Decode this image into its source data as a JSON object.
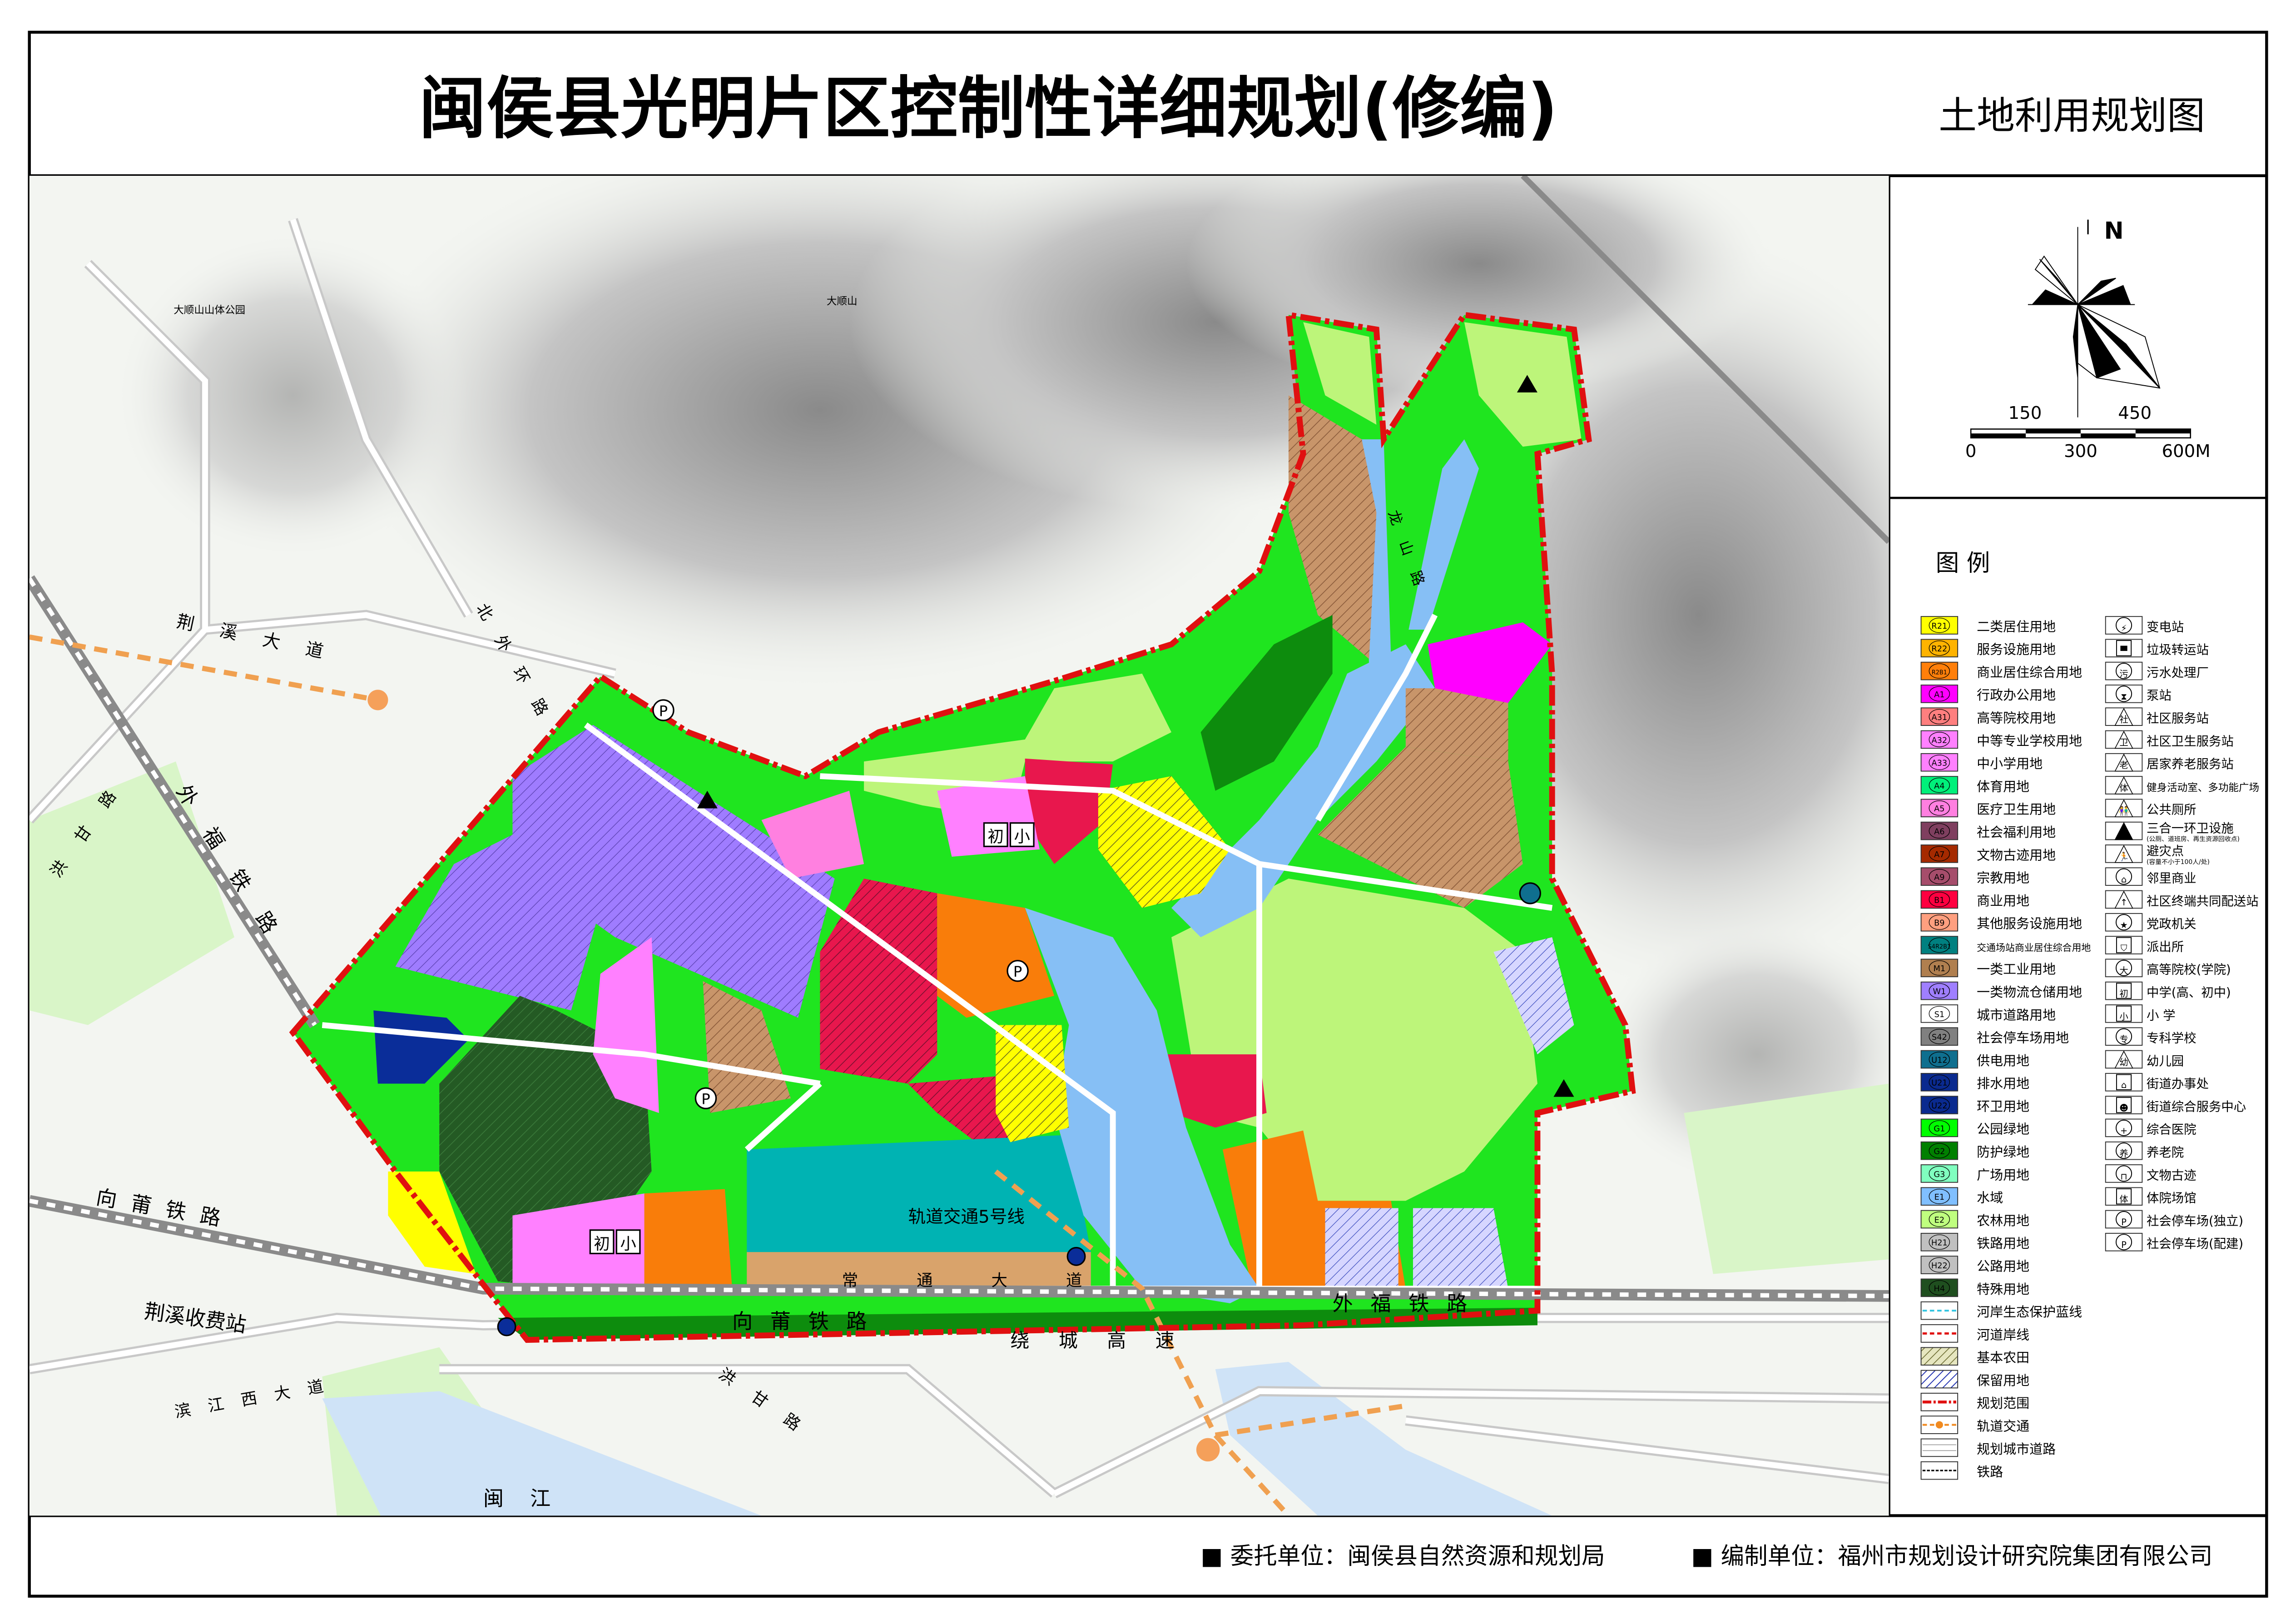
{
  "title": "闽侯县光明片区控制性详细规划(修编)",
  "subtitle": "土地利用规划图",
  "compass": {
    "north": "N"
  },
  "scale_bar": {
    "labels_top": [
      "150",
      "450"
    ],
    "labels_bottom": [
      "0",
      "300",
      "600M"
    ]
  },
  "legend": {
    "title": "图 例",
    "land_use": [
      {
        "code": "R21",
        "label": "二类居住用地",
        "color": "#ffff00"
      },
      {
        "code": "R22",
        "label": "服务设施用地",
        "color": "#ffb300"
      },
      {
        "code": "R2B1",
        "label": "商业居住综合用地",
        "color": "#ff7f0a"
      },
      {
        "code": "A1",
        "label": "行政办公用地",
        "color": "#ff00ff"
      },
      {
        "code": "A31",
        "label": "高等院校用地",
        "color": "#ff7f7f"
      },
      {
        "code": "A32",
        "label": "中等专业学校用地",
        "color": "#ff80ff"
      },
      {
        "code": "A33",
        "label": "中小学用地",
        "color": "#ff80ff"
      },
      {
        "code": "A4",
        "label": "体育用地",
        "color": "#00f07a"
      },
      {
        "code": "A5",
        "label": "医疗卫生用地",
        "color": "#ff7fe0"
      },
      {
        "code": "A6",
        "label": "社会福利用地",
        "color": "#7f3f5f"
      },
      {
        "code": "A7",
        "label": "文物古迹用地",
        "color": "#a52a00"
      },
      {
        "code": "A9",
        "label": "宗教用地",
        "color": "#a64d6b"
      },
      {
        "code": "B1",
        "label": "商业用地",
        "color": "#ff0040"
      },
      {
        "code": "B9",
        "label": "其他服务设施用地",
        "color": "#ff9f7f"
      },
      {
        "code": "S4R2B1",
        "label": "交通场站商业居住综合用地",
        "color": "#008080"
      },
      {
        "code": "M1",
        "label": "一类工业用地",
        "color": "#b07f4f"
      },
      {
        "code": "W1",
        "label": "一类物流仓储用地",
        "color": "#9f7fff"
      },
      {
        "code": "S1",
        "label": "城市道路用地",
        "color": "#ffffff"
      },
      {
        "code": "S42",
        "label": "社会停车场用地",
        "color": "#808080"
      },
      {
        "code": "U12",
        "label": "供电用地",
        "color": "#0f6f8f"
      },
      {
        "code": "U21",
        "label": "排水用地",
        "color": "#0a2a8f"
      },
      {
        "code": "U22",
        "label": "环卫用地",
        "color": "#0a2a8f"
      },
      {
        "code": "G1",
        "label": "公园绿地",
        "color": "#00ff00"
      },
      {
        "code": "G2",
        "label": "防护绿地",
        "color": "#008000"
      },
      {
        "code": "G3",
        "label": "广场用地",
        "color": "#80ffbf"
      },
      {
        "code": "E1",
        "label": "水域",
        "color": "#80bfff"
      },
      {
        "code": "E2",
        "label": "农林用地",
        "color": "#bfff7f"
      },
      {
        "code": "H21",
        "label": "铁路用地",
        "color": "#c0c0c0"
      },
      {
        "code": "H22",
        "label": "公路用地",
        "color": "#c0c0c0"
      },
      {
        "code": "H4",
        "label": "特殊用地",
        "color": "#1f4f1f"
      }
    ],
    "line_items": [
      {
        "type": "blue-dash",
        "label": "河岸生态保护蓝线",
        "color": "#2ec4e0"
      },
      {
        "type": "red-dash",
        "label": "河道岸线",
        "color": "#e01010"
      },
      {
        "type": "farmland-hatch",
        "label": "基本农田",
        "color": "#8a8a3a"
      },
      {
        "type": "reserve-hatch",
        "label": "保留用地",
        "color": "#2030b0"
      },
      {
        "type": "boundary",
        "label": "规划范围",
        "color": "#e01010"
      },
      {
        "type": "rail-transit",
        "label": "轨道交通",
        "color": "#f08a20"
      },
      {
        "type": "road",
        "label": "规划城市道路",
        "color": "#888888"
      },
      {
        "type": "railway",
        "label": "铁路",
        "color": "#000000"
      }
    ],
    "facilities": [
      {
        "icon": "lightning-circle",
        "glyph": "⚡",
        "label": "变电站"
      },
      {
        "icon": "trash-bin",
        "glyph": "▀",
        "label": "垃圾转运站"
      },
      {
        "icon": "sewage-circle",
        "glyph": "污",
        "label": "污水处理厂"
      },
      {
        "icon": "hourglass-circle",
        "glyph": "⧗",
        "label": "泵站"
      },
      {
        "icon": "triangle-she",
        "glyph": "社",
        "label": "社区服务站"
      },
      {
        "icon": "triangle-wei",
        "glyph": "卫",
        "label": "社区卫生服务站"
      },
      {
        "icon": "triangle-lao",
        "glyph": "老",
        "label": "居家养老服务站"
      },
      {
        "icon": "triangle-ti",
        "glyph": "体",
        "label": "健身活动室、多功能广场"
      },
      {
        "icon": "triangle-toilet",
        "glyph": "👫",
        "label": "公共厕所"
      },
      {
        "icon": "triangle-solid",
        "glyph": "▲",
        "label": "三合一环卫设施",
        "sub": "(公厕、道班房、再生资源回收点)"
      },
      {
        "icon": "triangle-runner",
        "glyph": "🏃",
        "label": "避灾点",
        "sub": "(容量不小于100人/处)"
      },
      {
        "icon": "house-circle",
        "glyph": "⌂",
        "label": "邻里商业"
      },
      {
        "icon": "triangle-arrow",
        "glyph": "↑",
        "label": "社区终端共同配送站"
      },
      {
        "icon": "star-circle",
        "glyph": "★",
        "label": "党政机关"
      },
      {
        "icon": "shield-star",
        "glyph": "⛉",
        "label": "派出所"
      },
      {
        "icon": "circle-da",
        "glyph": "大",
        "label": "高等院校(学院)"
      },
      {
        "icon": "square-chu",
        "glyph": "初",
        "label": "中学(高、初中)"
      },
      {
        "icon": "square-xiao",
        "glyph": "小",
        "label": "小 学"
      },
      {
        "icon": "circle-zhuan",
        "glyph": "专",
        "label": "专科学校"
      },
      {
        "icon": "triangle-you",
        "glyph": "幼",
        "label": "幼儿园"
      },
      {
        "icon": "street-office",
        "glyph": "⌂",
        "label": "街道办事处"
      },
      {
        "icon": "street-service",
        "glyph": "☻",
        "label": "街道综合服务中心"
      },
      {
        "icon": "plus-circle",
        "glyph": "+",
        "label": "综合医院"
      },
      {
        "icon": "circle-yang",
        "glyph": "养",
        "label": "养老院"
      },
      {
        "icon": "heritage-circle",
        "glyph": "⊓",
        "label": "文物古迹"
      },
      {
        "icon": "square-ti",
        "glyph": "体",
        "label": "体院场馆"
      },
      {
        "icon": "parking-circle",
        "glyph": "P",
        "label": "社会停车场(独立)"
      },
      {
        "icon": "parking-triangle",
        "glyph": "P",
        "label": "社会停车场(配建)"
      }
    ]
  },
  "map_labels": {
    "jingxi_avenue": "荆溪大道",
    "north_ring": "北外环路",
    "waifu_rail_west": "外福铁路",
    "honggan_west": "洪甘路",
    "xiangpu_rail_west": "向莆铁路",
    "toll_station": "荆溪收费站",
    "binjiang_avenue": "滨江西大道",
    "minjiang": "闽江",
    "changtong_avenue": "常通大道",
    "xiangpu_rail": "向莆铁路",
    "waifu_rail": "外福铁路",
    "ring_expressway": "绕城高速",
    "honggan_south": "洪甘路",
    "metro_line5": "轨道交通5号线",
    "dashun_mountain": "大顺山",
    "dashun_park": "大顺山山体公园",
    "longshan_road": "龙山路"
  },
  "footer": {
    "client": "■ 委托单位：闽侯县自然资源和规划局",
    "designer": "■ 编制单位：福州市规划设计研究院集团有限公司"
  }
}
